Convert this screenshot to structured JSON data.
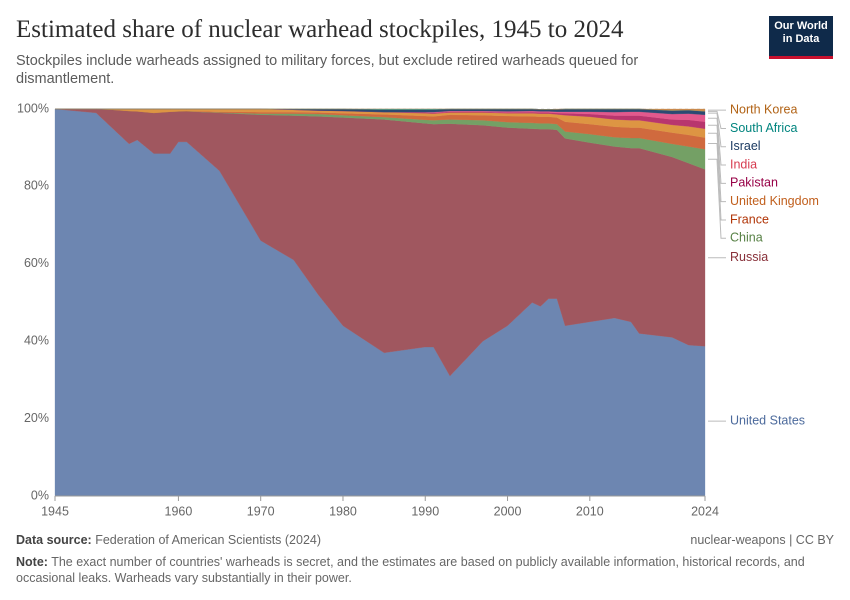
{
  "chart_data": {
    "type": "stacked_area",
    "title": "Estimated share of nuclear warhead stockpiles, 1945 to 2024",
    "subtitle": "Stockpiles include warheads assigned to military forces, but exclude retired warheads queued for dismantlement.",
    "x": [
      1945,
      1950,
      1952,
      1954,
      1955,
      1957,
      1959,
      1960,
      1961,
      1965,
      1970,
      1974,
      1977,
      1980,
      1985,
      1990,
      1991,
      1993,
      1997,
      2000,
      2003,
      2004,
      2005,
      2006,
      2007,
      2010,
      2013,
      2015,
      2016,
      2020,
      2022,
      2024
    ],
    "xlim": [
      1945,
      2024
    ],
    "xticks": [
      1945,
      1960,
      1970,
      1980,
      1990,
      2000,
      2010,
      2024
    ],
    "ylim": [
      0,
      100
    ],
    "yticks": [
      {
        "value": 0,
        "label": "0%"
      },
      {
        "value": 20,
        "label": "20%"
      },
      {
        "value": 40,
        "label": "40%"
      },
      {
        "value": 60,
        "label": "60%"
      },
      {
        "value": 80,
        "label": "80%"
      },
      {
        "value": 100,
        "label": "100%"
      }
    ],
    "grid": true,
    "series": [
      {
        "name": "United States",
        "color": "#6d86b1",
        "label_color": "#4c6a9c",
        "values": [
          100,
          99,
          95,
          91,
          92,
          88.5,
          88.5,
          91.5,
          91.5,
          84,
          66,
          61,
          52,
          44,
          37,
          38.5,
          38.5,
          31,
          40,
          44,
          50,
          49,
          51,
          51,
          44,
          45,
          46,
          45,
          42,
          41,
          39,
          38.7
        ]
      },
      {
        "name": "Russia",
        "color": "#a0575f",
        "label_color": "#883039",
        "values": [
          0,
          1,
          4.8,
          8.5,
          7.4,
          10.5,
          10.8,
          7.9,
          7.9,
          15,
          32.5,
          37.3,
          46.1,
          53.8,
          60.3,
          57.8,
          57.6,
          65.2,
          55.8,
          51.2,
          44.9,
          45.8,
          43.8,
          43.6,
          48.4,
          46.3,
          44.3,
          44.9,
          47.9,
          46.6,
          47,
          45.7
        ]
      },
      {
        "name": "China",
        "color": "#74a065",
        "label_color": "#578145",
        "values": [
          0,
          0,
          0,
          0,
          0,
          0,
          0,
          0,
          0,
          0.1,
          0.3,
          0.5,
          0.6,
          0.6,
          0.6,
          0.9,
          1,
          1.1,
          1.3,
          1.4,
          1.5,
          1.5,
          1.5,
          1.5,
          1.8,
          2.2,
          2.4,
          2.6,
          2.6,
          3.4,
          4.3,
          5.2
        ]
      },
      {
        "name": "France",
        "color": "#d06a3e",
        "label_color": "#b13507",
        "values": [
          0,
          0,
          0,
          0,
          0,
          0,
          0,
          0,
          0.1,
          0.2,
          0.4,
          0.4,
          0.4,
          0.5,
          0.7,
          1,
          1,
          1.2,
          1.3,
          1.6,
          1.7,
          1.7,
          1.7,
          1.7,
          2.5,
          2.6,
          2.7,
          2.7,
          2.7,
          2.9,
          3,
          3
        ]
      },
      {
        "name": "United Kingdom",
        "color": "#dd9543",
        "label_color": "#c15f1d",
        "values": [
          0,
          0,
          0.2,
          0.5,
          0.6,
          1,
          0.7,
          0.6,
          0.5,
          0.7,
          0.8,
          0.6,
          0.5,
          0.6,
          0.6,
          0.7,
          0.7,
          0.6,
          0.7,
          0.7,
          0.8,
          0.8,
          0.8,
          0.8,
          1.7,
          1.9,
          1.9,
          1.9,
          1.9,
          2,
          2.2,
          2.3
        ]
      },
      {
        "name": "Pakistan",
        "color": "#b8366e",
        "label_color": "#970046",
        "values": [
          0,
          0,
          0,
          0,
          0,
          0,
          0,
          0,
          0,
          0,
          0,
          0,
          0,
          0,
          0,
          0.2,
          0.2,
          0.2,
          0.2,
          0.2,
          0.3,
          0.3,
          0.3,
          0.35,
          0.5,
          0.7,
          1,
          1.2,
          1.2,
          1.4,
          1.7,
          1.8
        ]
      },
      {
        "name": "India",
        "color": "#e2598d",
        "label_color": "#d73c50",
        "values": [
          0,
          0,
          0,
          0,
          0,
          0,
          0,
          0,
          0,
          0,
          0,
          0,
          0,
          0,
          0,
          0.1,
          0.2,
          0.2,
          0.2,
          0.3,
          0.3,
          0.3,
          0.3,
          0.35,
          0.4,
          0.6,
          0.9,
          1,
          1,
          1.4,
          1.6,
          1.8
        ]
      },
      {
        "name": "Israel",
        "color": "#2b4a72",
        "label_color": "#18375f",
        "values": [
          0,
          0,
          0,
          0,
          0,
          0,
          0,
          0,
          0,
          0,
          0,
          0.2,
          0.4,
          0.5,
          0.6,
          0.6,
          0.6,
          0.5,
          0.5,
          0.6,
          0.5,
          0.5,
          0.5,
          0.6,
          0.7,
          0.7,
          0.8,
          0.7,
          0.7,
          0.9,
          0.9,
          0.9
        ]
      },
      {
        "name": "South Africa",
        "color": "#2a9a93",
        "label_color": "#00847e",
        "values": [
          0,
          0,
          0,
          0,
          0,
          0,
          0,
          0,
          0,
          0,
          0,
          0,
          0,
          0,
          0.2,
          0.2,
          0.2,
          0,
          0,
          0,
          0,
          0,
          0,
          0,
          0,
          0,
          0,
          0,
          0,
          0,
          0,
          0
        ]
      },
      {
        "name": "North Korea",
        "color": "#c98a4e",
        "label_color": "#b16214",
        "values": [
          0,
          0,
          0,
          0,
          0,
          0,
          0,
          0,
          0,
          0,
          0,
          0,
          0,
          0,
          0,
          0,
          0,
          0,
          0,
          0,
          0,
          0,
          0,
          0.1,
          0,
          0,
          0,
          0,
          0,
          0.4,
          0.3,
          0.6
        ]
      }
    ]
  },
  "logo": [
    "Our World",
    "in Data"
  ],
  "footer": {
    "source_label": "Data source:",
    "source": "Federation of American Scientists (2024)",
    "license": "nuclear-weapons | CC BY",
    "note_label": "Note:",
    "note": "The exact number of countries' warheads is secret, and the estimates are based on publicly available information, historical records, and occasional leaks. Warheads vary substantially in their power."
  }
}
